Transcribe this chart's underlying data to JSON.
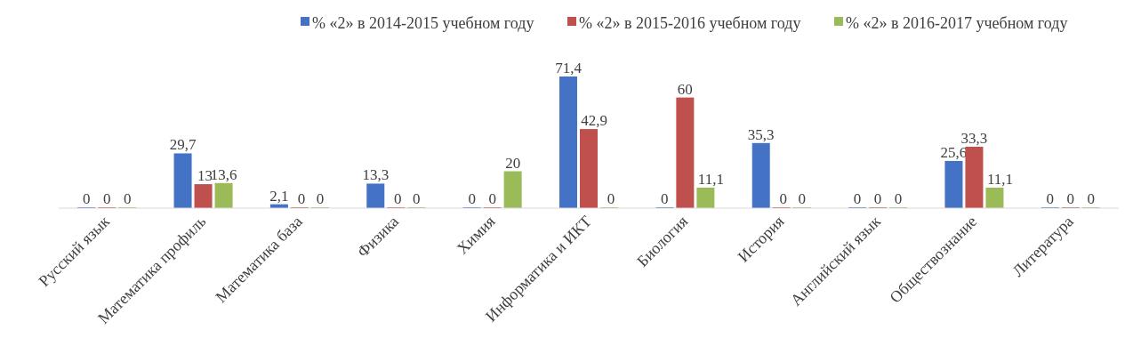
{
  "chart_data": {
    "type": "bar",
    "categories": [
      "Русский язык",
      "Математика профиль",
      "Математика база",
      "Физика",
      "Химия",
      "Информатика и ИКТ",
      "Биология",
      "История",
      "Английский язык",
      "Обществознание",
      "Литература"
    ],
    "series": [
      {
        "name": "% «2» в 2014-2015 учебном году",
        "color": "#4472c4",
        "values": [
          0,
          29.7,
          2.1,
          13.3,
          0,
          71.4,
          0,
          35.3,
          0,
          25.6,
          0
        ],
        "value_labels": [
          "0",
          "29,7",
          "2,1",
          "13,3",
          "0",
          "71,4",
          "0",
          "35,3",
          "0",
          "25,6",
          "0"
        ]
      },
      {
        "name": "% «2» в 2015-2016 учебном году",
        "color": "#c0504d",
        "values": [
          0,
          13,
          0,
          0,
          0,
          42.9,
          60,
          0,
          0,
          33.3,
          0
        ],
        "value_labels": [
          "0",
          "13",
          "0",
          "0",
          "0",
          "42,9",
          "60",
          "0",
          "0",
          "33,3",
          "0"
        ]
      },
      {
        "name": "% «2» в 2016-2017 учебном году",
        "color": "#9bbb59",
        "values": [
          0,
          13.6,
          0,
          0,
          20,
          0,
          11.1,
          0,
          0,
          11.1,
          0
        ],
        "value_labels": [
          "0",
          "13,6",
          "0",
          "0",
          "20",
          "0",
          "11,1",
          "0",
          "0",
          "11,1",
          "0"
        ]
      }
    ],
    "legend": "top"
  }
}
